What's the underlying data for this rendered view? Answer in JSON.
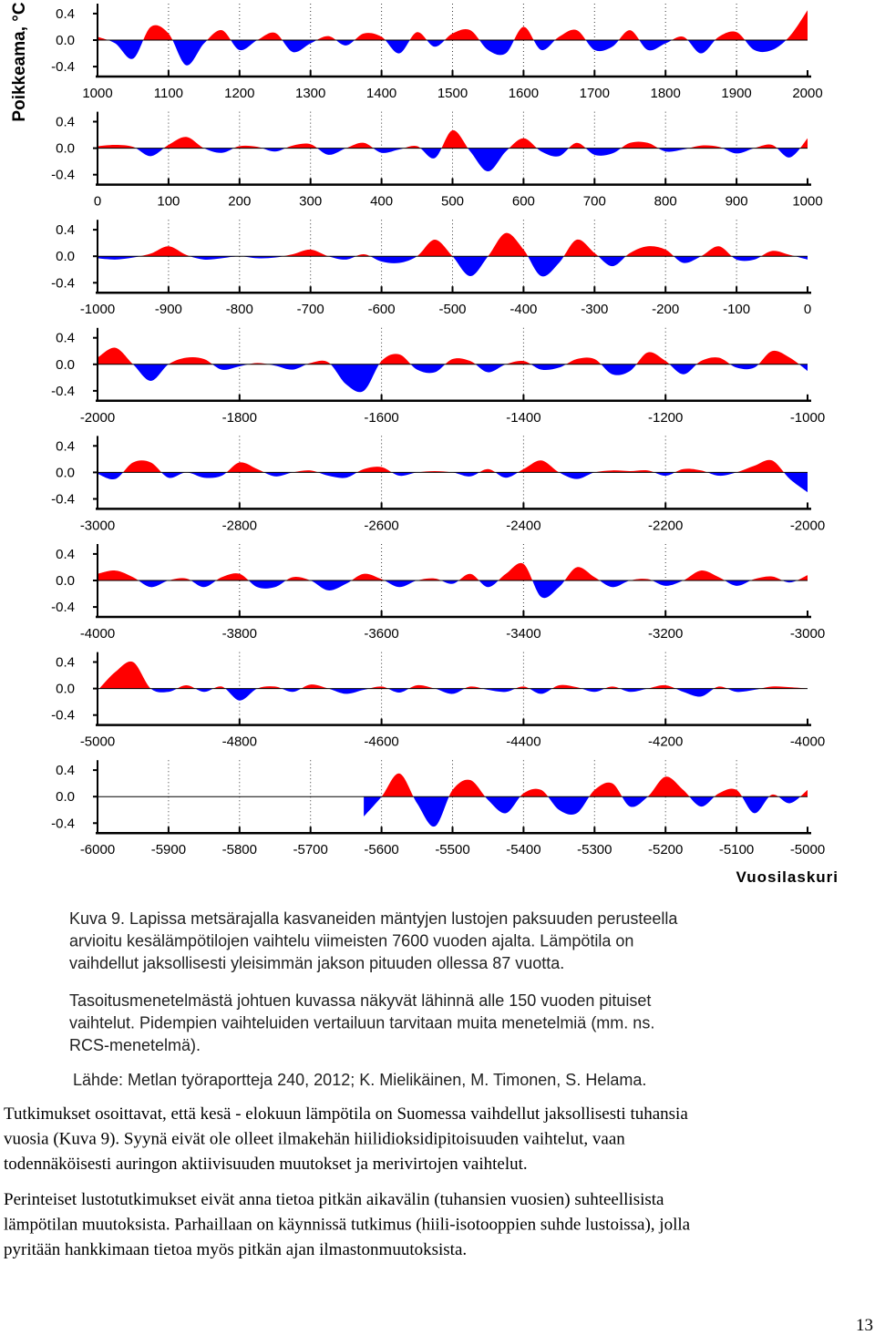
{
  "chart_data": [
    {
      "type": "area",
      "ylabel": "Poikkeama, °C",
      "color_above": "#ff0000",
      "color_below": "#0000ff",
      "xlim": [
        1000,
        2000
      ],
      "ylim": [
        -0.55,
        0.55
      ],
      "xticks": [
        1000,
        1100,
        1200,
        1300,
        1400,
        1500,
        1600,
        1700,
        1800,
        1900,
        2000
      ],
      "yticks": [
        0.4,
        {
          "value": 0,
          "label": "0.0"
        },
        -0.4
      ],
      "x": [
        1000,
        1025,
        1050,
        1075,
        1100,
        1125,
        1150,
        1175,
        1200,
        1225,
        1250,
        1275,
        1300,
        1325,
        1350,
        1375,
        1400,
        1425,
        1450,
        1475,
        1500,
        1525,
        1550,
        1575,
        1600,
        1625,
        1650,
        1675,
        1700,
        1725,
        1750,
        1775,
        1800,
        1825,
        1850,
        1875,
        1900,
        1925,
        1950,
        1975,
        2000
      ],
      "values": [
        0.05,
        -0.05,
        -0.28,
        0.2,
        0.1,
        -0.38,
        -0.05,
        0.15,
        -0.15,
        0.0,
        0.11,
        -0.18,
        -0.05,
        0.06,
        -0.08,
        0.1,
        0.05,
        -0.2,
        0.12,
        -0.1,
        0.1,
        0.15,
        -0.15,
        -0.2,
        0.2,
        -0.15,
        0.05,
        0.15,
        -0.15,
        -0.1,
        0.15,
        -0.15,
        -0.05,
        0.05,
        -0.2,
        0.05,
        0.12,
        -0.15,
        -0.15,
        0.06,
        0.45
      ]
    },
    {
      "type": "area",
      "color_above": "#ff0000",
      "color_below": "#0000ff",
      "xlim": [
        0,
        1000
      ],
      "ylim": [
        -0.55,
        0.55
      ],
      "xticks": [
        0,
        100,
        200,
        300,
        400,
        500,
        600,
        700,
        800,
        900,
        1000
      ],
      "yticks": [
        0.4,
        {
          "value": 0,
          "label": "0.0"
        },
        -0.4
      ],
      "x": [
        0,
        25,
        50,
        75,
        100,
        125,
        150,
        175,
        200,
        225,
        250,
        275,
        300,
        325,
        350,
        375,
        400,
        425,
        450,
        475,
        500,
        525,
        550,
        575,
        600,
        625,
        650,
        675,
        700,
        725,
        750,
        775,
        800,
        825,
        850,
        875,
        900,
        925,
        950,
        975,
        1000
      ],
      "values": [
        0.03,
        0.05,
        0.02,
        -0.12,
        0.05,
        0.17,
        0.0,
        -0.07,
        0.03,
        0.02,
        -0.05,
        0.04,
        0.06,
        -0.1,
        0.0,
        0.08,
        -0.07,
        -0.02,
        0.03,
        -0.15,
        0.27,
        -0.05,
        -0.35,
        -0.05,
        0.15,
        -0.05,
        -0.12,
        0.08,
        -0.1,
        -0.08,
        0.08,
        0.08,
        -0.05,
        -0.02,
        0.04,
        0.02,
        -0.08,
        0.0,
        0.05,
        -0.14,
        0.15
      ]
    },
    {
      "type": "area",
      "color_above": "#ff0000",
      "color_below": "#0000ff",
      "xlim": [
        -1000,
        0
      ],
      "ylim": [
        -0.55,
        0.55
      ],
      "xticks": [
        -1000,
        -900,
        -800,
        -700,
        -600,
        -500,
        -400,
        -300,
        -200,
        -100,
        0
      ],
      "yticks": [
        0.4,
        {
          "value": 0,
          "label": "0.0"
        },
        -0.4
      ],
      "x": [
        -1000,
        -975,
        -950,
        -925,
        -900,
        -875,
        -850,
        -825,
        -800,
        -775,
        -750,
        -725,
        -700,
        -675,
        -650,
        -625,
        -600,
        -575,
        -550,
        -525,
        -500,
        -475,
        -450,
        -425,
        -400,
        -375,
        -350,
        -325,
        -300,
        -275,
        -250,
        -225,
        -200,
        -175,
        -150,
        -125,
        -100,
        -75,
        -50,
        -25,
        0
      ],
      "values": [
        -0.03,
        -0.05,
        -0.02,
        0.04,
        0.15,
        0.02,
        -0.05,
        -0.03,
        0.0,
        -0.03,
        -0.02,
        0.03,
        0.1,
        0.0,
        -0.05,
        0.03,
        -0.08,
        -0.1,
        0.0,
        0.25,
        0.0,
        -0.3,
        0.0,
        0.35,
        0.1,
        -0.3,
        -0.1,
        0.25,
        0.05,
        -0.15,
        0.05,
        0.15,
        0.1,
        -0.1,
        0.0,
        0.15,
        -0.05,
        -0.05,
        0.08,
        0.02,
        -0.05
      ]
    },
    {
      "type": "area",
      "color_above": "#ff0000",
      "color_below": "#0000ff",
      "xlim": [
        -2000,
        -1000
      ],
      "ylim": [
        -0.55,
        0.55
      ],
      "xticks": [
        -2000,
        -1800,
        -1600,
        -1400,
        -1200,
        -1000
      ],
      "yticks": [
        0.4,
        {
          "value": 0,
          "label": "0.0"
        },
        -0.4
      ],
      "x": [
        -2000,
        -1975,
        -1950,
        -1925,
        -1900,
        -1875,
        -1850,
        -1825,
        -1800,
        -1775,
        -1750,
        -1725,
        -1700,
        -1675,
        -1650,
        -1625,
        -1600,
        -1575,
        -1550,
        -1525,
        -1500,
        -1475,
        -1450,
        -1425,
        -1400,
        -1375,
        -1350,
        -1325,
        -1300,
        -1275,
        -1250,
        -1225,
        -1200,
        -1175,
        -1150,
        -1125,
        -1100,
        -1075,
        -1050,
        -1025,
        -1000
      ],
      "values": [
        0.1,
        0.25,
        0.0,
        -0.25,
        0.0,
        0.1,
        0.08,
        -0.08,
        -0.03,
        0.02,
        -0.02,
        -0.08,
        0.02,
        0.03,
        -0.3,
        -0.4,
        0.05,
        0.15,
        -0.08,
        -0.12,
        0.08,
        0.05,
        -0.12,
        0.0,
        0.05,
        -0.08,
        -0.05,
        0.08,
        0.08,
        -0.15,
        -0.1,
        0.18,
        0.05,
        -0.15,
        0.05,
        0.1,
        -0.05,
        -0.05,
        0.2,
        0.1,
        -0.1
      ]
    },
    {
      "type": "area",
      "color_above": "#ff0000",
      "color_below": "#0000ff",
      "xlim": [
        -3000,
        -2000
      ],
      "ylim": [
        -0.55,
        0.55
      ],
      "xticks": [
        -3000,
        -2800,
        -2600,
        -2400,
        -2200,
        -2000
      ],
      "yticks": [
        0.4,
        {
          "value": 0,
          "label": "0.0"
        },
        -0.4
      ],
      "x": [
        -3000,
        -2975,
        -2950,
        -2925,
        -2900,
        -2875,
        -2850,
        -2825,
        -2800,
        -2775,
        -2750,
        -2725,
        -2700,
        -2675,
        -2650,
        -2625,
        -2600,
        -2575,
        -2550,
        -2525,
        -2500,
        -2475,
        -2450,
        -2425,
        -2400,
        -2375,
        -2350,
        -2325,
        -2300,
        -2275,
        -2250,
        -2225,
        -2200,
        -2175,
        -2150,
        -2125,
        -2100,
        -2075,
        -2050,
        -2025,
        -2000
      ],
      "values": [
        -0.02,
        -0.1,
        0.15,
        0.15,
        -0.08,
        0.0,
        -0.08,
        -0.05,
        0.15,
        0.05,
        -0.06,
        0.0,
        0.03,
        -0.05,
        -0.08,
        0.05,
        0.08,
        -0.05,
        0.0,
        0.02,
        0.0,
        -0.06,
        0.05,
        -0.08,
        0.05,
        0.18,
        0.0,
        -0.1,
        0.0,
        0.03,
        0.02,
        0.03,
        -0.05,
        0.05,
        0.03,
        -0.05,
        0.0,
        0.1,
        0.18,
        -0.1,
        -0.3
      ]
    },
    {
      "type": "area",
      "color_above": "#ff0000",
      "color_below": "#0000ff",
      "xlim": [
        -4000,
        -3000
      ],
      "ylim": [
        -0.55,
        0.55
      ],
      "xticks": [
        -4000,
        -3800,
        -3600,
        -3400,
        -3200,
        -3000
      ],
      "yticks": [
        0.4,
        {
          "value": 0,
          "label": "0.0"
        },
        -0.4
      ],
      "x": [
        -4000,
        -3975,
        -3950,
        -3925,
        -3900,
        -3875,
        -3850,
        -3825,
        -3800,
        -3775,
        -3750,
        -3725,
        -3700,
        -3675,
        -3650,
        -3625,
        -3600,
        -3575,
        -3550,
        -3525,
        -3500,
        -3475,
        -3450,
        -3425,
        -3400,
        -3375,
        -3350,
        -3325,
        -3300,
        -3275,
        -3250,
        -3225,
        -3200,
        -3175,
        -3150,
        -3125,
        -3100,
        -3075,
        -3050,
        -3025,
        -3000
      ],
      "values": [
        0.1,
        0.15,
        0.05,
        -0.1,
        0.0,
        0.03,
        -0.1,
        0.05,
        0.1,
        -0.1,
        -0.1,
        0.05,
        0.0,
        -0.15,
        -0.05,
        0.1,
        0.02,
        -0.1,
        0.0,
        0.03,
        -0.05,
        0.1,
        -0.1,
        0.1,
        0.25,
        -0.25,
        -0.1,
        0.2,
        0.05,
        -0.1,
        0.0,
        0.02,
        -0.08,
        0.0,
        0.15,
        0.05,
        -0.08,
        0.02,
        0.06,
        -0.03,
        0.08
      ]
    },
    {
      "type": "area",
      "color_above": "#ff0000",
      "color_below": "#0000ff",
      "xlim": [
        -5000,
        -4000
      ],
      "ylim": [
        -0.55,
        0.55
      ],
      "xticks": [
        -5000,
        -4800,
        -4600,
        -4400,
        -4200,
        -4000
      ],
      "yticks": [
        0.4,
        {
          "value": 0,
          "label": "0.0"
        },
        -0.4
      ],
      "x": [
        -5000,
        -4975,
        -4950,
        -4925,
        -4900,
        -4875,
        -4850,
        -4825,
        -4800,
        -4775,
        -4750,
        -4725,
        -4700,
        -4675,
        -4650,
        -4625,
        -4600,
        -4575,
        -4550,
        -4525,
        -4500,
        -4475,
        -4450,
        -4425,
        -4400,
        -4375,
        -4350,
        -4325,
        -4300,
        -4275,
        -4250,
        -4225,
        -4200,
        -4175,
        -4150,
        -4125,
        -4100,
        -4075,
        -4050,
        -4025,
        -4000
      ],
      "values": [
        -0.03,
        0.25,
        0.4,
        0.0,
        -0.05,
        0.05,
        -0.05,
        0.03,
        -0.18,
        0.0,
        0.03,
        -0.05,
        0.06,
        0.0,
        -0.08,
        -0.02,
        0.03,
        -0.06,
        0.05,
        0.0,
        -0.08,
        0.03,
        -0.02,
        -0.05,
        0.03,
        -0.08,
        0.05,
        0.02,
        -0.05,
        0.03,
        -0.05,
        0.0,
        0.05,
        -0.05,
        -0.12,
        0.03,
        -0.05,
        -0.02,
        0.03,
        0.02,
        0.0
      ]
    },
    {
      "type": "area",
      "xlabel": "Vuosilaskuri",
      "color_above": "#ff0000",
      "color_below": "#0000ff",
      "xlim": [
        -6000,
        -5000
      ],
      "ylim": [
        -0.55,
        0.55
      ],
      "xticks": [
        -6000,
        -5900,
        -5800,
        -5700,
        -5600,
        -5500,
        -5400,
        -5300,
        -5200,
        -5100,
        -5000
      ],
      "yticks": [
        0.4,
        {
          "value": 0,
          "label": "0.0"
        },
        -0.4
      ],
      "x": [
        -6000,
        -5975,
        -5950,
        -5925,
        -5900,
        -5875,
        -5850,
        -5825,
        -5800,
        -5775,
        -5750,
        -5725,
        -5700,
        -5675,
        -5650,
        -5625,
        -5600,
        -5575,
        -5550,
        -5525,
        -5500,
        -5475,
        -5450,
        -5425,
        -5400,
        -5375,
        -5350,
        -5325,
        -5300,
        -5275,
        -5250,
        -5225,
        -5200,
        -5175,
        -5150,
        -5125,
        -5100,
        -5075,
        -5050,
        -5025,
        -5000
      ],
      "values": [
        null,
        null,
        null,
        null,
        null,
        null,
        null,
        null,
        null,
        null,
        null,
        null,
        null,
        null,
        null,
        -0.3,
        0.0,
        0.35,
        -0.1,
        -0.45,
        0.1,
        0.25,
        -0.05,
        -0.25,
        0.05,
        0.1,
        -0.2,
        -0.25,
        0.1,
        0.2,
        -0.15,
        0.0,
        0.3,
        0.1,
        -0.15,
        0.05,
        0.1,
        -0.25,
        0.03,
        -0.1,
        0.1
      ]
    }
  ],
  "caption": {
    "lines": [
      "Kuva 9. Lapissa metsärajalla kasvaneiden mäntyjen lustojen paksuuden perusteella",
      "arvioitu kesälämpötilojen vaihtelu viimeisten 7600 vuoden ajalta. Lämpötila on",
      "vaihdellut jaksollisesti yleisimmän jakson pituuden ollessa 87 vuotta."
    ],
    "note": [
      "Tasoitusmenetelmästä johtuen kuvassa näkyvät lähinnä alle 150 vuoden pituiset",
      "vaihtelut. Pidempien vaihteluiden vertailuun tarvitaan muita menetelmiä (mm. ns.",
      "RCS-menetelmä)."
    ],
    "source": "Lähde: Metlan työraportteja 240, 2012; K. Mielikäinen, M. Timonen, S. Helama."
  },
  "body": {
    "paragraphs": [
      [
        "Tutkimukset osoittavat, että kesä - elokuun lämpötila on Suomessa vaihdellut jaksollisesti tuhansia",
        "vuosia (Kuva 9). Syynä eivät ole olleet ilmakehän hiilidioksidipitoisuuden vaihtelut, vaan",
        "todennäköisesti auringon aktiivisuuden muutokset ja merivirtojen vaihtelut."
      ],
      [
        "Perinteiset lustotutkimukset eivät anna tietoa pitkän aikavälin (tuhansien vuosien) suhteellisista",
        "lämpötilan muutoksista. Parhaillaan on käynnissä tutkimus (hiili-isotooppien suhde lustoissa), jolla",
        "pyritään hankkimaan tietoa myös pitkän ajan ilmastonmuutoksista."
      ]
    ]
  },
  "page_number": "13"
}
